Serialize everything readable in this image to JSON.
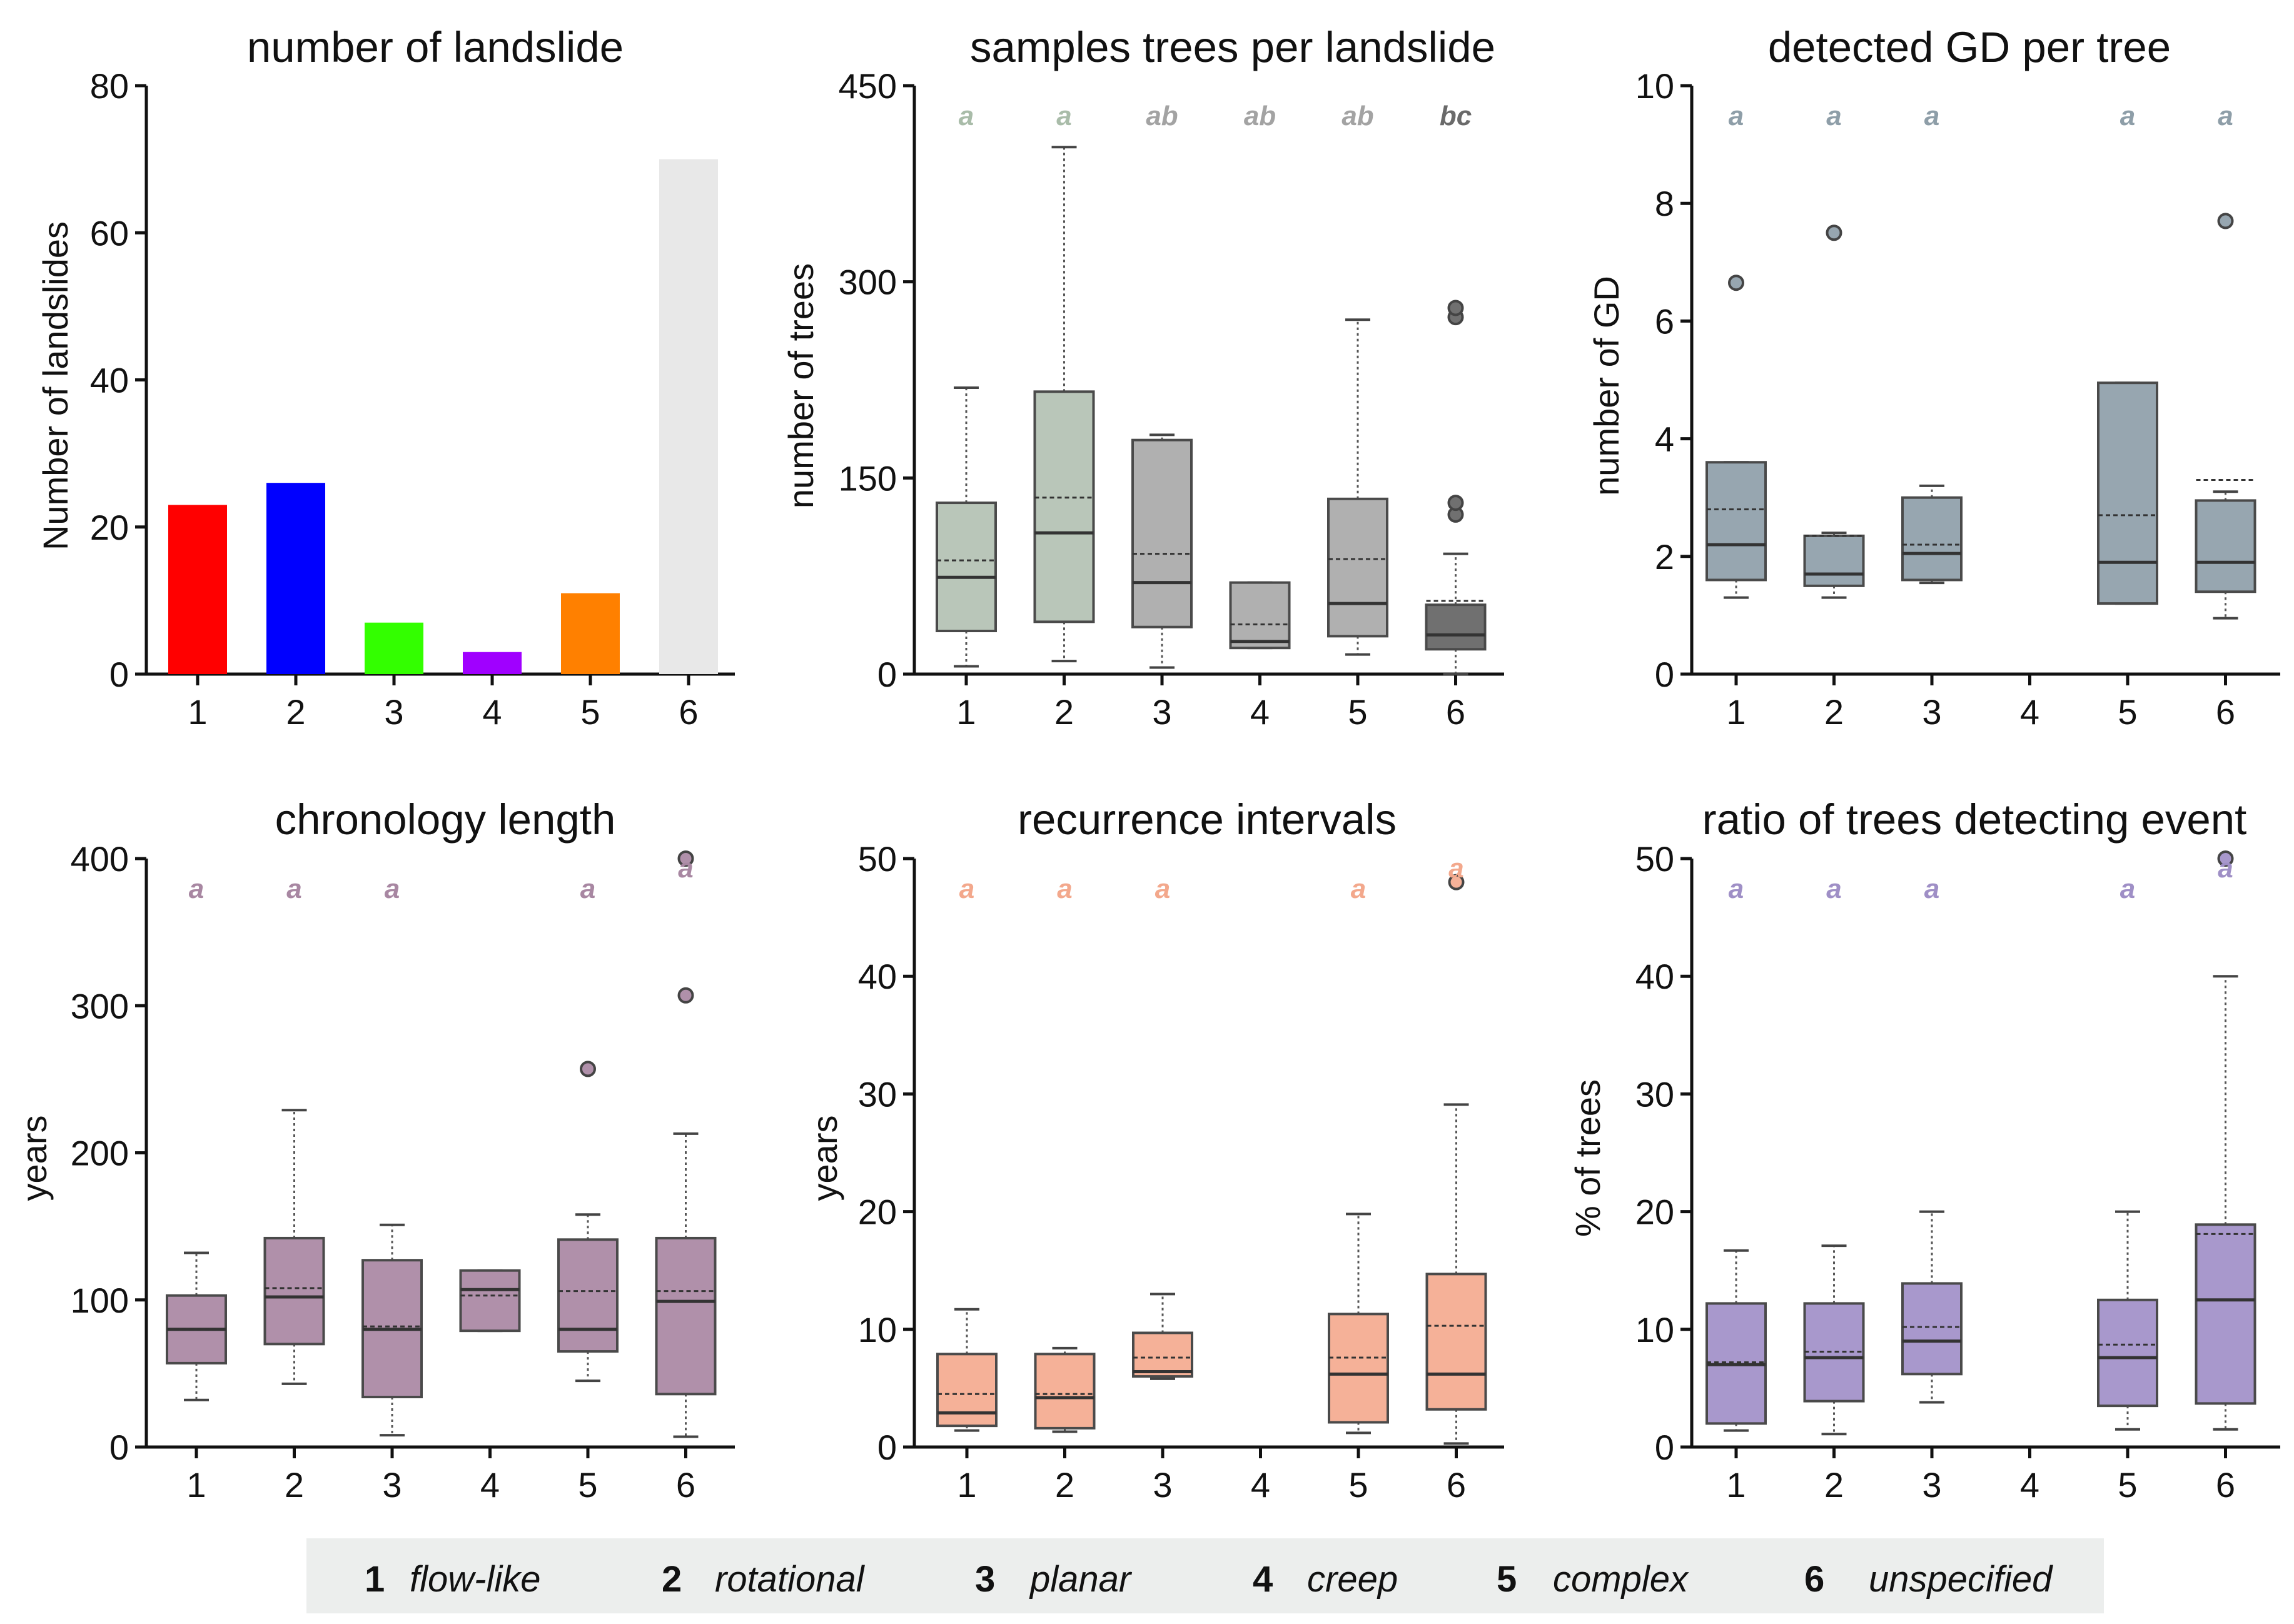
{
  "legend": [
    {
      "num": "1",
      "name": "flow-like"
    },
    {
      "num": "2",
      "name": "rotational"
    },
    {
      "num": "3",
      "name": "planar"
    },
    {
      "num": "4",
      "name": "creep"
    },
    {
      "num": "5",
      "name": "complex"
    },
    {
      "num": "6",
      "name": "unspecified"
    }
  ],
  "chart_data": [
    {
      "id": "p1",
      "type": "bar",
      "title": "number of landslide",
      "ylabel": "Number of landslides",
      "ylim": [
        0,
        80
      ],
      "yticks": [
        0,
        20,
        40,
        60,
        80
      ],
      "categories": [
        "1",
        "2",
        "3",
        "4",
        "5",
        "6"
      ],
      "values": [
        23,
        26,
        7,
        3,
        11,
        70
      ],
      "colors": [
        "#ff0000",
        "#0000ff",
        "#33ff00",
        "#a000ff",
        "#ff8000",
        "#e8e8e8"
      ]
    },
    {
      "id": "p2",
      "type": "box",
      "title": "samples trees per landslide",
      "ylabel": "number of trees",
      "ylim": [
        0,
        450
      ],
      "yticks": [
        0,
        150,
        300,
        450
      ],
      "categories": [
        "1",
        "2",
        "3",
        "4",
        "5",
        "6"
      ],
      "boxes": [
        {
          "cat": "1",
          "min": 6,
          "q1": 33,
          "median": 74,
          "mean": 87,
          "q3": 131,
          "max": 219,
          "outliers": [],
          "sig": "a",
          "fill": "#b9c6b9",
          "sigColor": "#a9bca9"
        },
        {
          "cat": "2",
          "min": 10,
          "q1": 40,
          "median": 108,
          "mean": 135,
          "q3": 216,
          "max": 403,
          "outliers": [],
          "sig": "a",
          "fill": "#b9c6b9",
          "sigColor": "#a9bca9"
        },
        {
          "cat": "3",
          "min": 5,
          "q1": 36,
          "median": 70,
          "mean": 92,
          "q3": 179,
          "max": 183,
          "outliers": [],
          "sig": "ab",
          "fill": "#b0b0b0",
          "sigColor": "#a3a3a3"
        },
        {
          "cat": "4",
          "min": 20,
          "q1": 20,
          "median": 25,
          "mean": 38,
          "q3": 70,
          "max": 70,
          "outliers": [],
          "sig": "ab",
          "fill": "#b0b0b0",
          "sigColor": "#a3a3a3"
        },
        {
          "cat": "5",
          "min": 15,
          "q1": 29,
          "median": 54,
          "mean": 88,
          "q3": 134,
          "max": 271,
          "outliers": [],
          "sig": "ab",
          "fill": "#b0b0b0",
          "sigColor": "#a3a3a3"
        },
        {
          "cat": "6",
          "min": 0,
          "q1": 19,
          "median": 30,
          "mean": 56,
          "q3": 53,
          "max": 92,
          "outliers": [
            122,
            131,
            273,
            280
          ],
          "sig": "bc",
          "fill": "#707070",
          "sigColor": "#6a6a6a"
        }
      ]
    },
    {
      "id": "p3",
      "type": "box",
      "title": "detected GD per tree",
      "ylabel": "number of GD",
      "ylim": [
        0,
        10
      ],
      "yticks": [
        0,
        2,
        4,
        6,
        8,
        10
      ],
      "categories": [
        "1",
        "2",
        "3",
        "4",
        "5",
        "6"
      ],
      "boxes": [
        {
          "cat": "1",
          "min": 1.3,
          "q1": 1.6,
          "median": 2.2,
          "mean": 2.8,
          "q3": 3.6,
          "max": 3.6,
          "outliers": [
            6.65
          ],
          "sig": "a",
          "fill": "#97a6b0",
          "sigColor": "#8e9ea8"
        },
        {
          "cat": "2",
          "min": 1.3,
          "q1": 1.5,
          "median": 1.7,
          "mean": 2.35,
          "q3": 2.35,
          "max": 2.4,
          "outliers": [
            7.5
          ],
          "sig": "a",
          "fill": "#97a6b0",
          "sigColor": "#8e9ea8"
        },
        {
          "cat": "3",
          "min": 1.55,
          "q1": 1.6,
          "median": 2.05,
          "mean": 2.2,
          "q3": 3.0,
          "max": 3.2,
          "outliers": [],
          "sig": "a",
          "fill": "#97a6b0",
          "sigColor": "#8e9ea8"
        },
        {
          "cat": "5",
          "min": 1.2,
          "q1": 1.2,
          "median": 1.9,
          "mean": 2.7,
          "q3": 4.95,
          "max": 4.95,
          "outliers": [],
          "sig": "a",
          "fill": "#97a6b0",
          "sigColor": "#8e9ea8"
        },
        {
          "cat": "6",
          "min": 0.95,
          "q1": 1.4,
          "median": 1.9,
          "mean": 3.3,
          "q3": 2.95,
          "max": 3.1,
          "outliers": [
            7.7
          ],
          "sig": "a",
          "fill": "#97a6b0",
          "sigColor": "#8e9ea8"
        }
      ]
    },
    {
      "id": "p4",
      "type": "box",
      "title": "chronology length",
      "ylabel": "years",
      "ylim": [
        0,
        400
      ],
      "yticks": [
        0,
        100,
        200,
        300,
        400
      ],
      "categories": [
        "1",
        "2",
        "3",
        "4",
        "5",
        "6"
      ],
      "boxes": [
        {
          "cat": "1",
          "min": 32,
          "q1": 57,
          "median": 80,
          "mean": 80,
          "q3": 103,
          "max": 132,
          "outliers": [],
          "sig": "a",
          "fill": "#b090aa",
          "sigColor": "#a887a2"
        },
        {
          "cat": "2",
          "min": 43,
          "q1": 70,
          "median": 102,
          "mean": 108,
          "q3": 142,
          "max": 229,
          "outliers": [],
          "sig": "a",
          "fill": "#b090aa",
          "sigColor": "#a887a2"
        },
        {
          "cat": "3",
          "min": 8,
          "q1": 34,
          "median": 80,
          "mean": 82,
          "q3": 127,
          "max": 151,
          "outliers": [],
          "sig": "a",
          "fill": "#b090aa",
          "sigColor": "#a887a2"
        },
        {
          "cat": "4",
          "min": 79,
          "q1": 79,
          "median": 107,
          "mean": 103,
          "q3": 120,
          "max": 120,
          "outliers": [],
          "sig": "",
          "fill": "#b090aa",
          "sigColor": "#a887a2"
        },
        {
          "cat": "5",
          "min": 45,
          "q1": 65,
          "median": 80,
          "mean": 106,
          "q3": 141,
          "max": 158,
          "outliers": [
            257
          ],
          "sig": "a",
          "fill": "#b090aa",
          "sigColor": "#a887a2"
        },
        {
          "cat": "6",
          "min": 7,
          "q1": 36,
          "median": 99,
          "mean": 106,
          "q3": 142,
          "max": 213,
          "outliers": [
            307,
            400
          ],
          "sig": "a",
          "fill": "#b090aa",
          "sigColor": "#a887a2"
        }
      ]
    },
    {
      "id": "p5",
      "type": "box",
      "title": "recurrence intervals",
      "ylabel": "years",
      "ylim": [
        0,
        50
      ],
      "yticks": [
        0,
        10,
        20,
        30,
        40,
        50
      ],
      "categories": [
        "1",
        "2",
        "3",
        "4",
        "5",
        "6"
      ],
      "boxes": [
        {
          "cat": "1",
          "min": 1.4,
          "q1": 1.8,
          "median": 2.9,
          "mean": 4.5,
          "q3": 7.9,
          "max": 11.7,
          "outliers": [],
          "sig": "a",
          "fill": "#f5b198",
          "sigColor": "#f3a88c"
        },
        {
          "cat": "2",
          "min": 1.3,
          "q1": 1.6,
          "median": 4.2,
          "mean": 4.5,
          "q3": 7.9,
          "max": 8.4,
          "outliers": [],
          "sig": "a",
          "fill": "#f5b198",
          "sigColor": "#f3a88c"
        },
        {
          "cat": "3",
          "min": 5.8,
          "q1": 6.0,
          "median": 6.4,
          "mean": 7.6,
          "q3": 9.7,
          "max": 13.0,
          "outliers": [],
          "sig": "a",
          "fill": "#f5b198",
          "sigColor": "#f3a88c"
        },
        {
          "cat": "5",
          "min": 1.2,
          "q1": 2.1,
          "median": 6.2,
          "mean": 7.6,
          "q3": 11.3,
          "max": 19.8,
          "outliers": [],
          "sig": "a",
          "fill": "#f5b198",
          "sigColor": "#f3a88c"
        },
        {
          "cat": "6",
          "min": 0.3,
          "q1": 3.2,
          "median": 6.2,
          "mean": 10.3,
          "q3": 14.7,
          "max": 29.1,
          "outliers": [
            48.0
          ],
          "sig": "a",
          "fill": "#f5b198",
          "sigColor": "#f3a88c"
        }
      ]
    },
    {
      "id": "p6",
      "type": "box",
      "title": "ratio of trees detecting event",
      "ylabel": "% of trees",
      "ylim": [
        0,
        50
      ],
      "yticks": [
        0,
        10,
        20,
        30,
        40,
        50
      ],
      "categories": [
        "1",
        "2",
        "3",
        "4",
        "5",
        "6"
      ],
      "boxes": [
        {
          "cat": "1",
          "min": 1.4,
          "q1": 2.0,
          "median": 7.0,
          "mean": 7.2,
          "q3": 12.2,
          "max": 16.7,
          "outliers": [],
          "sig": "a",
          "fill": "#a898cc",
          "sigColor": "#9f8fc6"
        },
        {
          "cat": "2",
          "min": 1.1,
          "q1": 3.9,
          "median": 7.6,
          "mean": 8.1,
          "q3": 12.2,
          "max": 17.1,
          "outliers": [],
          "sig": "a",
          "fill": "#a898cc",
          "sigColor": "#9f8fc6"
        },
        {
          "cat": "3",
          "min": 3.8,
          "q1": 6.2,
          "median": 9.0,
          "mean": 10.2,
          "q3": 13.9,
          "max": 20.0,
          "outliers": [],
          "sig": "a",
          "fill": "#a898cc",
          "sigColor": "#9f8fc6"
        },
        {
          "cat": "5",
          "min": 1.5,
          "q1": 3.5,
          "median": 7.6,
          "mean": 8.7,
          "q3": 12.5,
          "max": 20.0,
          "outliers": [],
          "sig": "a",
          "fill": "#a898cc",
          "sigColor": "#9f8fc6"
        },
        {
          "cat": "6",
          "min": 1.5,
          "q1": 3.7,
          "median": 12.5,
          "mean": 18.1,
          "q3": 18.9,
          "max": 40.0,
          "outliers": [
            50.0
          ],
          "sig": "a",
          "fill": "#a898cc",
          "sigColor": "#9f8fc6"
        }
      ]
    }
  ]
}
